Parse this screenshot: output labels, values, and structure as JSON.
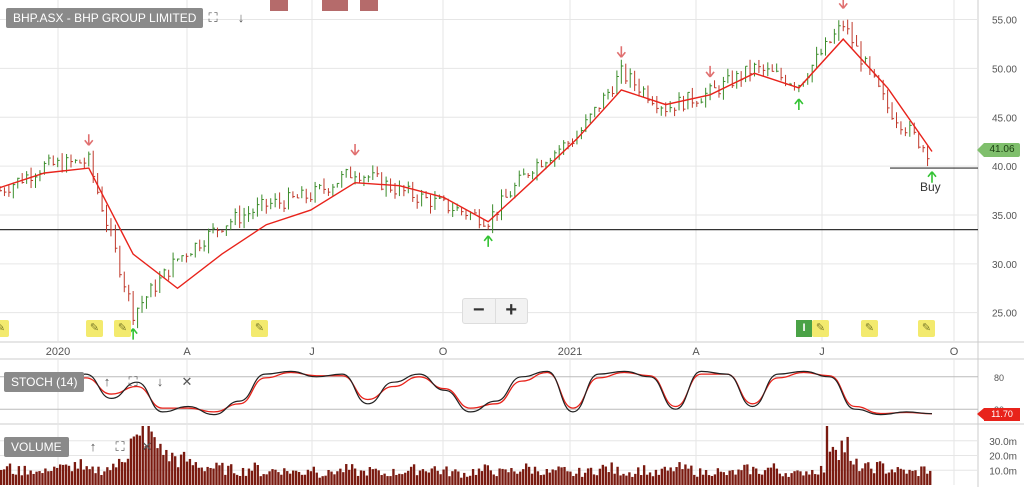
{
  "price_panel": {
    "title": "BHP.ASX - BHP GROUP LIMITED",
    "last_price": "41.06",
    "buy_label": "Buy",
    "y_ticks": [
      "55.00",
      "50.00",
      "45.00",
      "40.00",
      "35.00",
      "30.00",
      "25.00"
    ],
    "x_ticks": [
      "2020",
      "A",
      "J",
      "O",
      "2021",
      "A",
      "J",
      "O"
    ]
  },
  "stoch_panel": {
    "title": "STOCH (14)",
    "value": "11.70",
    "y_ticks": [
      "80",
      "20"
    ]
  },
  "volume_panel": {
    "title": "VOLUME",
    "y_ticks": [
      "30.0m",
      "20.0m",
      "10.0m"
    ]
  },
  "zoom": {
    "minus": "−",
    "plus": "+"
  },
  "toolbar": {
    "expand": "⛶",
    "down": "↓",
    "up": "↑",
    "close": "✕"
  },
  "badge": {
    "info": "I",
    "pencil": "✎"
  },
  "colors": {
    "up_bar": "#3a8c2a",
    "down_bar": "#c0392b",
    "ma_line": "#e8231b",
    "stoch_k": "#222222",
    "stoch_d": "#e8231b",
    "volume_bar": "#7a1a10",
    "buy_arrow": "#34c334",
    "sell_arrow": "#e07070",
    "grid": "#e6e6e6"
  },
  "chart_data": [
    {
      "type": "line",
      "name": "price",
      "ylim": [
        22,
        57
      ],
      "dates": [
        "2019-12",
        "2020-01",
        "2020-02",
        "2020-03",
        "2020-04",
        "2020-05",
        "2020-06",
        "2020-07",
        "2020-08",
        "2020-09",
        "2020-10",
        "2020-11",
        "2020-12",
        "2021-01",
        "2021-02",
        "2021-03",
        "2021-04",
        "2021-05",
        "2021-06",
        "2021-07",
        "2021-08",
        "2021-09"
      ],
      "price": [
        37.5,
        40,
        40.5,
        25,
        30.5,
        34,
        36,
        37,
        39.5,
        37.5,
        36,
        34.5,
        40,
        43,
        49.5,
        46,
        47.5,
        50,
        48.5,
        54.5,
        46,
        41.06
      ],
      "moving_average": [
        37.8,
        39.3,
        39.8,
        31,
        27.5,
        31,
        34,
        35.5,
        38.3,
        38,
        36.8,
        34.3,
        38.5,
        42.8,
        47.8,
        46.3,
        47.3,
        49.5,
        48,
        53,
        48,
        41.5
      ],
      "support_levels": [
        33.5,
        39.8
      ],
      "buy_signals": [
        "2020-03",
        "2020-11",
        "2021-06",
        "2021-09"
      ],
      "sell_signals": [
        "2020-02",
        "2020-08",
        "2021-02",
        "2021-04",
        "2021-07"
      ]
    },
    {
      "type": "line",
      "name": "STOCH (14)",
      "ylim": [
        0,
        100
      ],
      "k": [
        60,
        85,
        40,
        70,
        15,
        25,
        10,
        35,
        85,
        90,
        80,
        85,
        30,
        70,
        85,
        55,
        15,
        35,
        80,
        90,
        15,
        85,
        90,
        80,
        20,
        90,
        85,
        25,
        85,
        90,
        80,
        20,
        10,
        15,
        11.7
      ],
      "d": [
        58,
        78,
        48,
        62,
        22,
        22,
        15,
        30,
        78,
        88,
        82,
        82,
        38,
        62,
        80,
        58,
        22,
        30,
        72,
        88,
        22,
        78,
        88,
        82,
        25,
        85,
        85,
        30,
        78,
        88,
        82,
        25,
        12,
        14,
        11.7
      ]
    },
    {
      "type": "bar",
      "name": "VOLUME",
      "ylim": [
        0,
        40
      ],
      "unit": "m",
      "values": [
        12,
        10,
        11,
        9,
        13,
        12,
        14,
        10,
        11,
        12,
        22,
        30,
        38,
        28,
        20,
        18,
        15,
        13,
        12,
        11,
        10,
        12,
        9,
        11,
        10,
        9,
        12,
        8,
        10,
        11,
        9,
        10,
        8,
        9,
        10,
        11,
        12,
        10,
        9,
        8,
        10,
        11,
        9,
        10,
        12,
        11,
        9,
        10,
        8,
        9,
        11,
        12,
        10,
        9,
        11,
        8,
        10,
        12,
        11,
        9,
        10,
        8,
        9,
        11,
        10,
        12,
        9,
        8,
        10,
        11,
        32,
        28,
        14,
        12,
        13,
        11,
        10,
        9,
        11
      ]
    }
  ]
}
